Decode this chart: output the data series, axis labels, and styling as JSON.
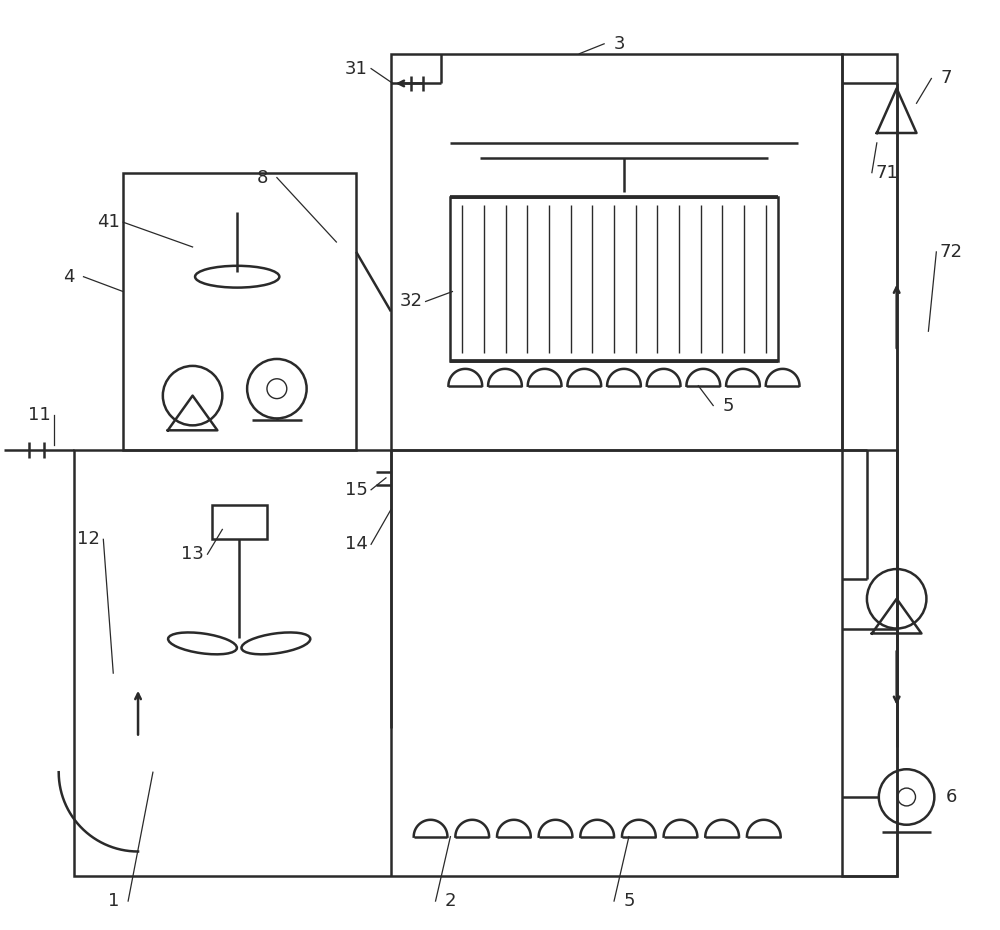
{
  "background": "#ffffff",
  "line_color": "#2a2a2a",
  "lw": 1.8,
  "thin_lw": 1.0,
  "label_fs": 13
}
